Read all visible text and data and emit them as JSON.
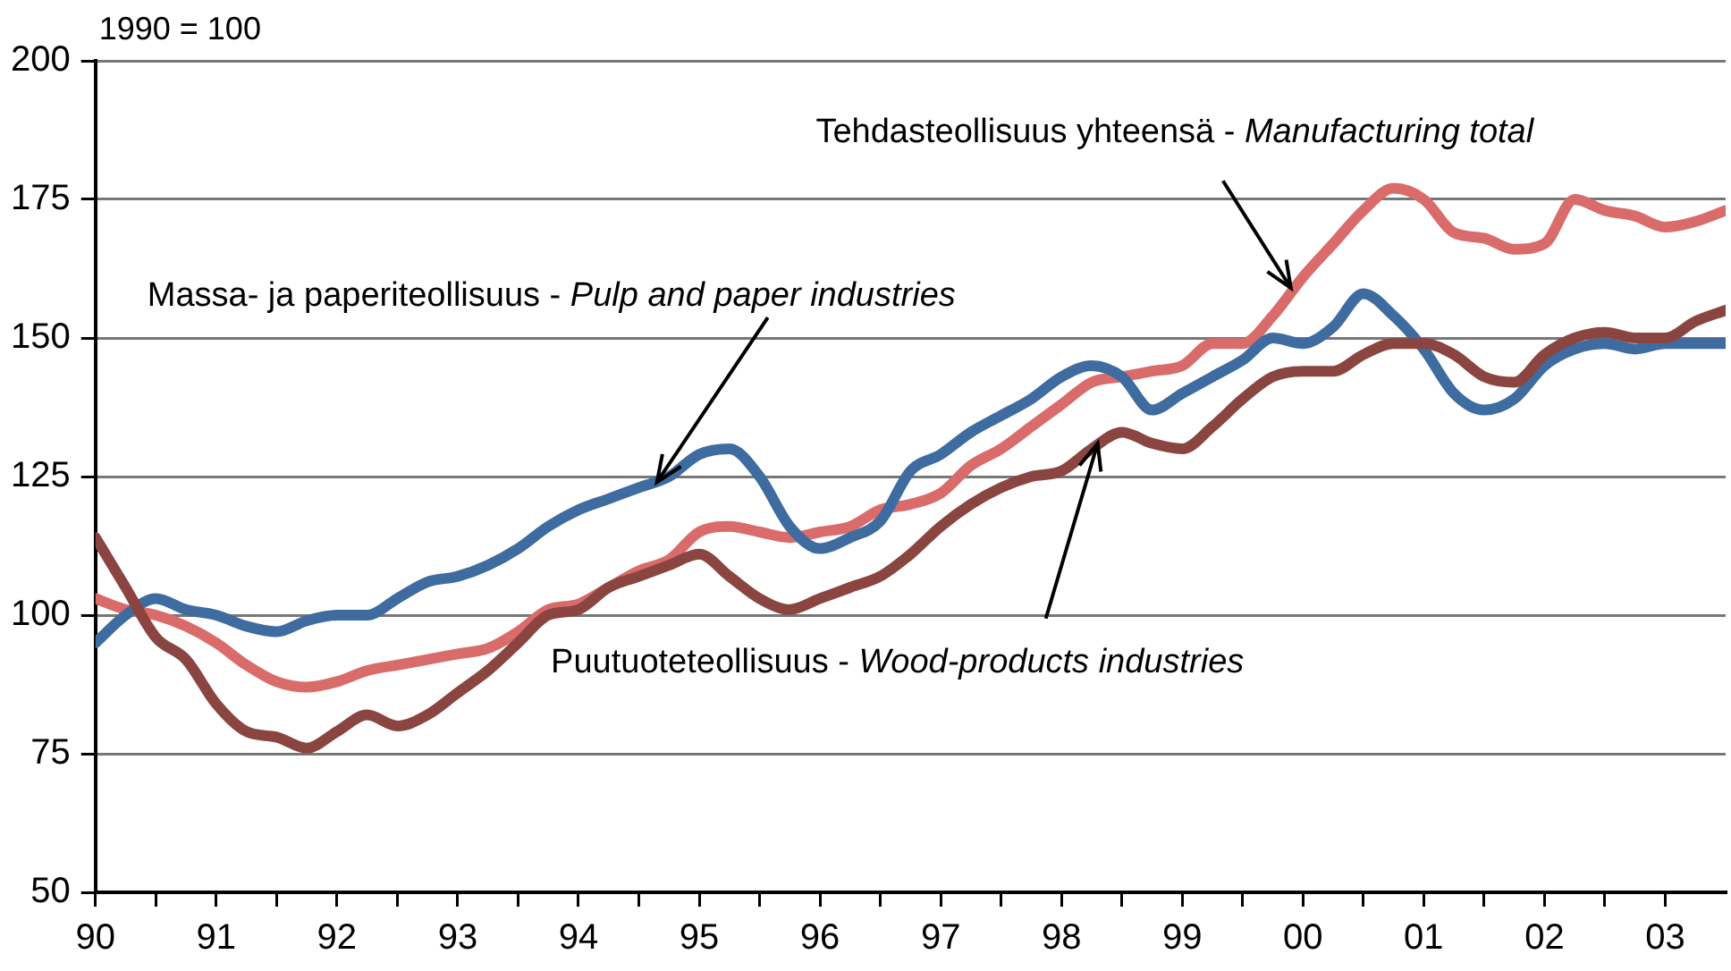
{
  "chart_data": {
    "type": "line",
    "ylabel": "1990 = 100",
    "x": [
      1990,
      1990.25,
      1990.5,
      1990.75,
      1991,
      1991.25,
      1991.5,
      1991.75,
      1992,
      1992.25,
      1992.5,
      1992.75,
      1993,
      1993.25,
      1993.5,
      1993.75,
      1994,
      1994.25,
      1994.5,
      1994.75,
      1995,
      1995.25,
      1995.5,
      1995.75,
      1996,
      1996.25,
      1996.5,
      1996.75,
      1997,
      1997.25,
      1997.5,
      1997.75,
      1998,
      1998.25,
      1998.5,
      1998.75,
      1999,
      1999.25,
      1999.5,
      1999.75,
      2000,
      2000.25,
      2000.5,
      2000.75,
      2001,
      2001.25,
      2001.5,
      2001.75,
      2002,
      2002.25,
      2002.5,
      2002.75,
      2003,
      2003.25,
      2003.5
    ],
    "series": [
      {
        "color": "#8b4540",
        "values": [
          114,
          105,
          96,
          92,
          84,
          79,
          78,
          76,
          79,
          82,
          80,
          82,
          86,
          90,
          95,
          100,
          101,
          105,
          107,
          109,
          111,
          107,
          103,
          101,
          103,
          105,
          107,
          111,
          116,
          120,
          123,
          125,
          126,
          130,
          133,
          131,
          130,
          134,
          139,
          143,
          144,
          144,
          147,
          149,
          149,
          147,
          143,
          142,
          147,
          150,
          151,
          150,
          150,
          153,
          155
        ]
      },
      {
        "color": "#3e6ba0",
        "values": [
          95,
          100,
          103,
          101,
          100,
          98,
          97,
          99,
          100,
          100,
          103,
          106,
          107,
          109,
          112,
          116,
          119,
          121,
          123,
          125,
          129,
          130,
          125,
          116,
          112,
          114,
          117,
          126,
          129,
          133,
          136,
          139,
          143,
          145,
          143,
          137,
          140,
          143,
          146,
          150,
          149,
          152,
          158,
          154,
          148,
          140,
          137,
          139,
          145,
          148,
          149,
          148,
          149,
          149,
          149
        ]
      },
      {
        "color": "#d96b6b",
        "values": [
          103,
          101,
          100,
          98,
          95,
          91,
          88,
          87,
          88,
          90,
          91,
          92,
          93,
          94,
          97,
          101,
          102,
          105,
          108,
          110,
          115,
          116,
          115,
          114,
          115,
          116,
          119,
          120,
          122,
          127,
          130,
          134,
          138,
          142,
          143,
          144,
          145,
          149,
          149,
          154,
          161,
          167,
          173,
          177,
          175,
          169,
          168,
          166,
          167,
          175,
          173,
          172,
          170,
          171,
          173
        ]
      }
    ],
    "xlim": [
      1990,
      2003.5
    ],
    "xticks": [
      {
        "value": 1990,
        "label": "90"
      },
      {
        "value": 1990.5,
        "label": null
      },
      {
        "value": 1991,
        "label": "91"
      },
      {
        "value": 1991.5,
        "label": null
      },
      {
        "value": 1992,
        "label": "92"
      },
      {
        "value": 1992.5,
        "label": null
      },
      {
        "value": 1993,
        "label": "93"
      },
      {
        "value": 1993.5,
        "label": null
      },
      {
        "value": 1994,
        "label": "94"
      },
      {
        "value": 1994.5,
        "label": null
      },
      {
        "value": 1995,
        "label": "95"
      },
      {
        "value": 1995.5,
        "label": null
      },
      {
        "value": 1996,
        "label": "96"
      },
      {
        "value": 1996.5,
        "label": null
      },
      {
        "value": 1997,
        "label": "97"
      },
      {
        "value": 1997.5,
        "label": null
      },
      {
        "value": 1998,
        "label": "98"
      },
      {
        "value": 1998.5,
        "label": null
      },
      {
        "value": 1999,
        "label": "99"
      },
      {
        "value": 1999.5,
        "label": null
      },
      {
        "value": 2000,
        "label": "00"
      },
      {
        "value": 2000.5,
        "label": null
      },
      {
        "value": 2001,
        "label": "01"
      },
      {
        "value": 2001.5,
        "label": null
      },
      {
        "value": 2002,
        "label": "02"
      },
      {
        "value": 2002.5,
        "label": null
      },
      {
        "value": 2003,
        "label": "03"
      }
    ],
    "ylim": [
      50,
      200
    ],
    "yticks": [
      50,
      75,
      100,
      125,
      150,
      175,
      200
    ],
    "grid": "y",
    "legend": false,
    "marker": "none",
    "line_style": "solid",
    "annotations": [
      {
        "text": "Massa- ja paperiteollisuus - Pulp and paper industries",
        "x": 1994.65,
        "y": 124
      },
      {
        "text": "Tehdasteollisuus yhteensä - Manufacturing total",
        "x": 1999.9,
        "y": 159
      },
      {
        "text": "Puutuoteteollisuus - Wood-products industries",
        "x": 1998.3,
        "y": 131
      }
    ]
  }
}
